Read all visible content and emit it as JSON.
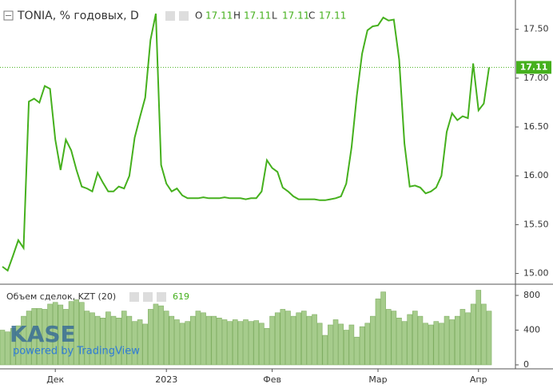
{
  "chart_data": [
    {
      "type": "line",
      "title": "TONIA, % годовых, D",
      "ohlc_labels": [
        "O",
        "H",
        "L",
        "C"
      ],
      "ohlc_values": [
        "17.11",
        "17.11",
        "17.11",
        "17.11"
      ],
      "last_price_label": "17.11",
      "categories": [
        null,
        null,
        null,
        null,
        null,
        null,
        null,
        null,
        null,
        null,
        "Дек",
        null,
        null,
        null,
        null,
        null,
        null,
        null,
        null,
        null,
        null,
        null,
        null,
        null,
        null,
        null,
        null,
        null,
        null,
        null,
        null,
        "2023",
        null,
        null,
        null,
        null,
        null,
        null,
        null,
        null,
        null,
        null,
        null,
        null,
        null,
        null,
        null,
        null,
        null,
        null,
        null,
        "Фев",
        null,
        null,
        null,
        null,
        null,
        null,
        null,
        null,
        null,
        null,
        null,
        null,
        null,
        null,
        null,
        null,
        null,
        null,
        null,
        "Мар",
        null,
        null,
        null,
        null,
        null,
        null,
        null,
        null,
        null,
        null,
        null,
        null,
        null,
        null,
        null,
        null,
        null,
        null,
        "Апр",
        null,
        null
      ],
      "series": [
        {
          "name": "TONIA",
          "color": "#45b01d",
          "values": [
            15.07,
            15.03,
            15.18,
            15.34,
            15.26,
            16.76,
            16.79,
            16.75,
            16.92,
            16.89,
            16.37,
            16.06,
            16.37,
            16.26,
            16.06,
            15.89,
            15.87,
            15.84,
            16.03,
            15.93,
            15.84,
            15.84,
            15.89,
            15.87,
            16.0,
            16.39,
            16.6,
            16.8,
            17.39,
            17.66,
            16.11,
            15.92,
            15.84,
            15.87,
            15.8,
            15.77,
            15.77,
            15.77,
            15.78,
            15.77,
            15.77,
            15.77,
            15.78,
            15.77,
            15.77,
            15.77,
            15.76,
            15.77,
            15.77,
            15.84,
            16.16,
            16.08,
            16.04,
            15.88,
            15.84,
            15.79,
            15.76,
            15.76,
            15.76,
            15.76,
            15.75,
            15.75,
            15.76,
            15.77,
            15.79,
            15.92,
            16.29,
            16.82,
            17.25,
            17.49,
            17.53,
            17.54,
            17.62,
            17.59,
            17.6,
            17.19,
            16.33,
            15.89,
            15.9,
            15.88,
            15.82,
            15.84,
            15.88,
            16.0,
            16.45,
            16.64,
            16.57,
            16.61,
            16.59,
            17.15,
            16.67,
            16.74,
            17.11
          ]
        }
      ],
      "ylim": [
        14.89,
        17.8
      ],
      "yticks": [
        {
          "value": 15,
          "label": "15.00"
        },
        {
          "value": 15.5,
          "label": "15.50"
        },
        {
          "value": 16,
          "label": "16.00"
        },
        {
          "value": 16.5,
          "label": "16.50"
        },
        {
          "value": 17,
          "label": "17.00"
        },
        {
          "value": 17.5,
          "label": "17.50"
        }
      ]
    },
    {
      "type": "bar",
      "title": "Объем сделок, KZT (20)",
      "last_value_label": "619",
      "series": [
        {
          "name": "Объем сделок",
          "color": "#a6cc8c",
          "values": [
            400,
            380,
            420,
            450,
            560,
            620,
            650,
            650,
            640,
            700,
            720,
            690,
            640,
            730,
            750,
            720,
            620,
            600,
            560,
            540,
            610,
            560,
            540,
            620,
            560,
            500,
            520,
            470,
            640,
            700,
            680,
            620,
            560,
            520,
            480,
            500,
            560,
            620,
            600,
            560,
            560,
            540,
            520,
            500,
            520,
            500,
            520,
            500,
            510,
            480,
            420,
            560,
            600,
            640,
            620,
            560,
            600,
            620,
            560,
            580,
            480,
            340,
            460,
            520,
            470,
            400,
            460,
            320,
            440,
            480,
            560,
            760,
            840,
            640,
            620,
            540,
            500,
            580,
            620,
            560,
            480,
            460,
            500,
            480,
            560,
            520,
            560,
            640,
            600,
            700,
            860,
            700,
            619
          ]
        }
      ],
      "ylim": [
        -46,
        920
      ],
      "yticks": [
        0,
        400,
        800
      ]
    }
  ],
  "watermark": {
    "logo": "KASE",
    "powered": "powered by TradingView"
  }
}
